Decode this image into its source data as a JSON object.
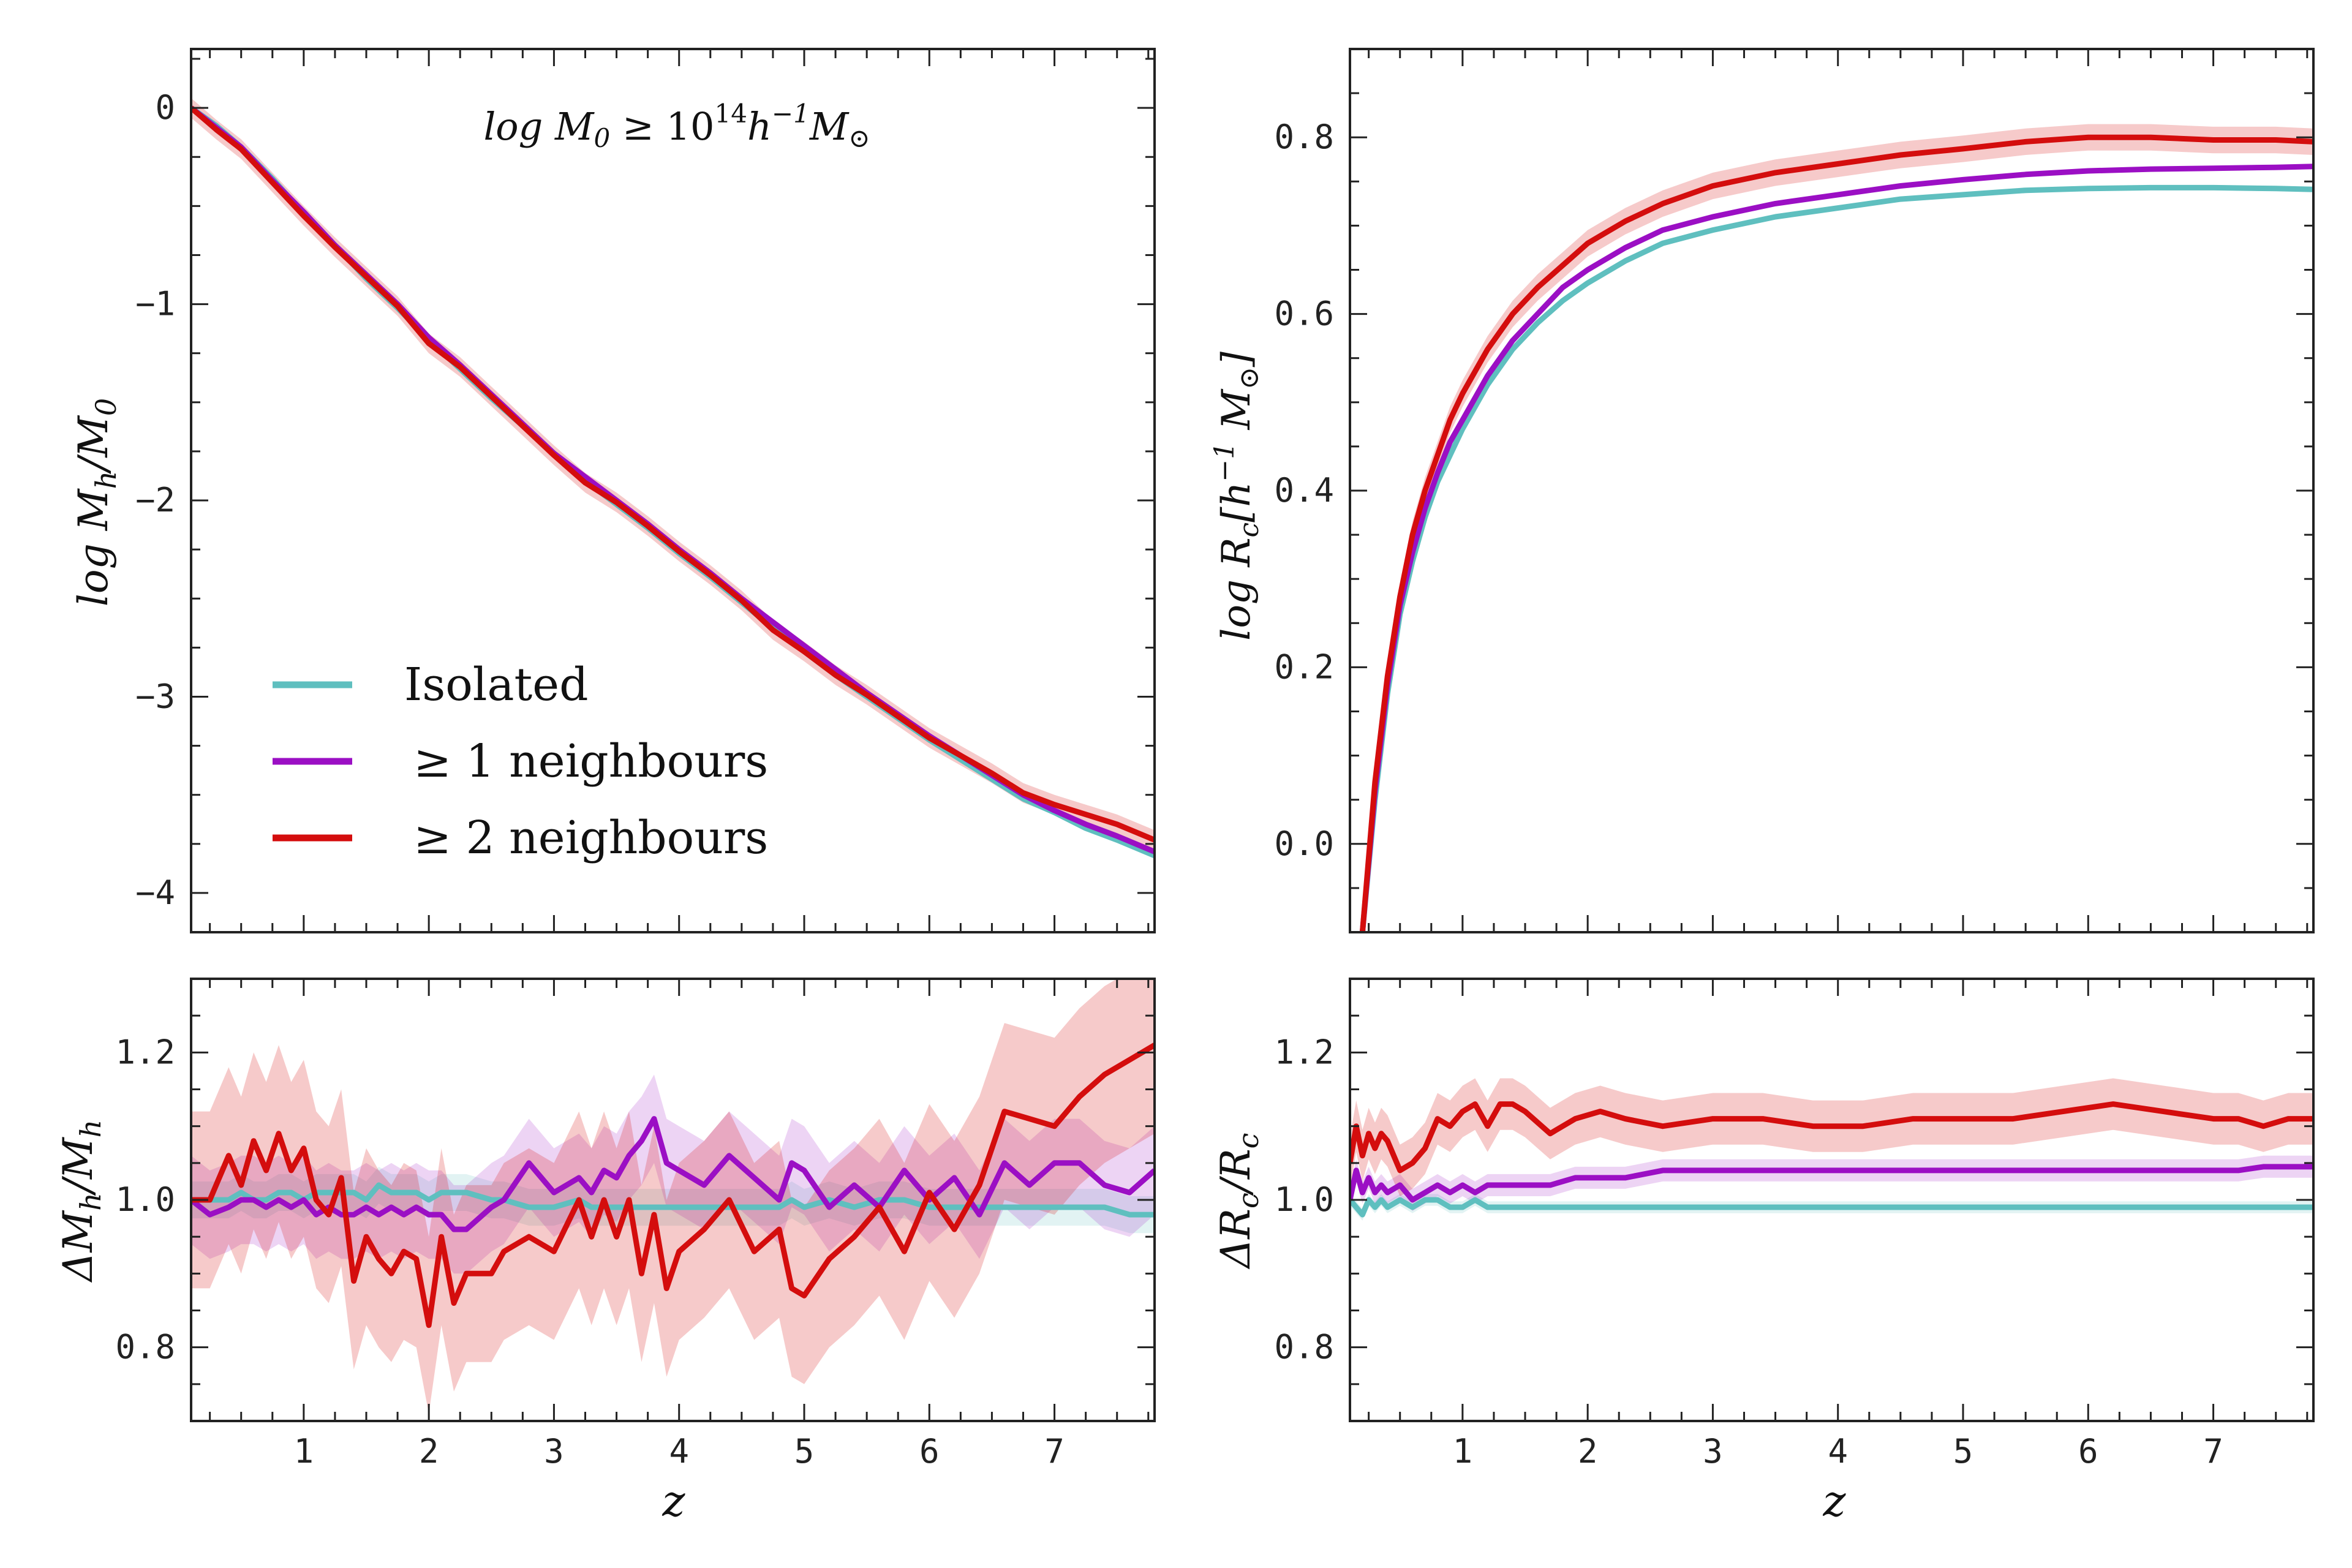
{
  "colors": {
    "isolated": "#5fbfbf",
    "n1": "#9b0fc4",
    "n2": "#d40d0d"
  },
  "annotation": {
    "sup": "14",
    "pre": "log M",
    "mid": " ≥ 10",
    "post": "h",
    "sup2": "−1",
    "end": "M"
  },
  "legend": {
    "placement": "lower-left",
    "entries": [
      "Isolated",
      "≥ 1 neighbours",
      "≥ 2 neighbours"
    ]
  },
  "chart_data": [
    {
      "type": "line",
      "panel": "top-left",
      "ylabel": "log Mh/M0",
      "xlim": [
        0.1,
        7.8
      ],
      "ylim": [
        -4.2,
        0.3
      ],
      "xticks": [
        1,
        2,
        3,
        4,
        5,
        6,
        7
      ],
      "yticks": [
        0,
        -1,
        -2,
        -3,
        -4
      ],
      "ytick_labels": [
        "0",
        "−1",
        "−2",
        "−3",
        "−4"
      ],
      "x": [
        0.1,
        0.3,
        0.5,
        0.75,
        1.0,
        1.25,
        1.5,
        1.75,
        2.0,
        2.25,
        2.5,
        2.75,
        3.0,
        3.25,
        3.5,
        3.75,
        4.0,
        4.25,
        4.5,
        4.75,
        5.0,
        5.25,
        5.5,
        5.75,
        6.0,
        6.25,
        6.5,
        6.75,
        7.0,
        7.25,
        7.5,
        7.8
      ],
      "series": [
        {
          "name": "Isolated",
          "color": "#5fbfbf",
          "values": [
            0.0,
            -0.09,
            -0.2,
            -0.36,
            -0.54,
            -0.7,
            -0.87,
            -1.02,
            -1.18,
            -1.33,
            -1.48,
            -1.62,
            -1.76,
            -1.9,
            -2.02,
            -2.14,
            -2.27,
            -2.39,
            -2.52,
            -2.65,
            -2.77,
            -2.89,
            -3.0,
            -3.11,
            -3.22,
            -3.32,
            -3.42,
            -3.52,
            -3.59,
            -3.67,
            -3.73,
            -3.81
          ]
        },
        {
          "name": "≥ 1 neighbours",
          "color": "#9b0fc4",
          "values": [
            0.0,
            -0.1,
            -0.2,
            -0.37,
            -0.53,
            -0.7,
            -0.85,
            -1.0,
            -1.17,
            -1.31,
            -1.46,
            -1.61,
            -1.76,
            -1.88,
            -2.0,
            -2.12,
            -2.25,
            -2.37,
            -2.5,
            -2.62,
            -2.74,
            -2.86,
            -2.98,
            -3.09,
            -3.2,
            -3.3,
            -3.4,
            -3.5,
            -3.58,
            -3.65,
            -3.71,
            -3.79
          ]
        },
        {
          "name": "≥ 2 neighbours",
          "color": "#d40d0d",
          "values": [
            0.0,
            -0.11,
            -0.21,
            -0.38,
            -0.55,
            -0.71,
            -0.86,
            -1.01,
            -1.2,
            -1.32,
            -1.47,
            -1.62,
            -1.77,
            -1.91,
            -2.01,
            -2.13,
            -2.26,
            -2.38,
            -2.51,
            -2.66,
            -2.77,
            -2.89,
            -2.99,
            -3.1,
            -3.21,
            -3.3,
            -3.39,
            -3.49,
            -3.55,
            -3.6,
            -3.65,
            -3.73
          ],
          "band": 0.05
        }
      ]
    },
    {
      "type": "line",
      "panel": "top-right",
      "ylabel": "log Rc[h−1 M⊙]",
      "xlim": [
        0.1,
        7.8
      ],
      "ylim": [
        -0.1,
        0.9
      ],
      "xticks": [
        1,
        2,
        3,
        4,
        5,
        6,
        7
      ],
      "yticks": [
        0.0,
        0.2,
        0.4,
        0.6,
        0.8
      ],
      "ytick_labels": [
        "0.0",
        "0.2",
        "0.4",
        "0.6",
        "0.8"
      ],
      "x": [
        0.2,
        0.3,
        0.4,
        0.5,
        0.6,
        0.7,
        0.8,
        0.9,
        1.0,
        1.2,
        1.4,
        1.6,
        1.8,
        2.0,
        2.3,
        2.6,
        3.0,
        3.5,
        4.0,
        4.5,
        5.0,
        5.5,
        6.0,
        6.5,
        7.0,
        7.5,
        7.8
      ],
      "series": [
        {
          "name": "Isolated",
          "color": "#5fbfbf",
          "values": [
            -0.1,
            0.05,
            0.17,
            0.26,
            0.32,
            0.37,
            0.41,
            0.44,
            0.47,
            0.52,
            0.56,
            0.59,
            0.615,
            0.635,
            0.66,
            0.68,
            0.695,
            0.71,
            0.72,
            0.73,
            0.735,
            0.74,
            0.742,
            0.743,
            0.743,
            0.742,
            0.741
          ]
        },
        {
          "name": "≥ 1 neighbours",
          "color": "#9b0fc4",
          "values": [
            -0.1,
            0.06,
            0.18,
            0.27,
            0.33,
            0.38,
            0.42,
            0.455,
            0.48,
            0.53,
            0.57,
            0.6,
            0.63,
            0.65,
            0.675,
            0.695,
            0.71,
            0.725,
            0.735,
            0.745,
            0.752,
            0.758,
            0.762,
            0.764,
            0.765,
            0.766,
            0.767
          ]
        },
        {
          "name": "≥ 2 neighbours",
          "color": "#d40d0d",
          "values": [
            -0.1,
            0.07,
            0.19,
            0.28,
            0.35,
            0.4,
            0.44,
            0.48,
            0.51,
            0.56,
            0.6,
            0.63,
            0.655,
            0.68,
            0.705,
            0.725,
            0.745,
            0.76,
            0.77,
            0.78,
            0.787,
            0.795,
            0.8,
            0.8,
            0.797,
            0.797,
            0.795
          ],
          "band": 0.015
        }
      ]
    },
    {
      "type": "line",
      "panel": "bottom-left",
      "ylabel": "ΔMh/Mh",
      "xlabel": "z",
      "xlim": [
        0.1,
        7.8
      ],
      "ylim": [
        0.7,
        1.3
      ],
      "xticks": [
        1,
        2,
        3,
        4,
        5,
        6,
        7
      ],
      "yticks": [
        0.8,
        1.0,
        1.2
      ],
      "ytick_labels": [
        "0.8",
        "1.0",
        "1.2"
      ],
      "x": [
        0.1,
        0.25,
        0.4,
        0.5,
        0.6,
        0.7,
        0.8,
        0.9,
        1.0,
        1.1,
        1.2,
        1.3,
        1.4,
        1.5,
        1.6,
        1.7,
        1.8,
        1.9,
        2.0,
        2.1,
        2.2,
        2.3,
        2.5,
        2.6,
        2.8,
        3.0,
        3.2,
        3.3,
        3.4,
        3.5,
        3.6,
        3.7,
        3.8,
        3.9,
        4.0,
        4.2,
        4.4,
        4.6,
        4.8,
        4.9,
        5.0,
        5.2,
        5.4,
        5.6,
        5.8,
        6.0,
        6.2,
        6.4,
        6.6,
        6.8,
        7.0,
        7.2,
        7.4,
        7.6,
        7.8
      ],
      "series": [
        {
          "name": "Isolated",
          "color": "#5fbfbf",
          "values": [
            1.0,
            1.0,
            1.0,
            1.01,
            1.0,
            1.0,
            1.01,
            1.01,
            1.0,
            1.01,
            1.01,
            1.01,
            1.01,
            1.0,
            1.02,
            1.01,
            1.01,
            1.01,
            1.0,
            1.01,
            1.01,
            1.01,
            1.0,
            1.0,
            0.99,
            0.99,
            1.0,
            0.99,
            0.99,
            0.99,
            0.99,
            0.99,
            0.99,
            0.99,
            0.99,
            0.99,
            0.99,
            0.99,
            0.99,
            1.0,
            0.99,
            1.0,
            0.99,
            1.0,
            1.0,
            0.99,
            0.99,
            0.99,
            0.99,
            0.99,
            0.99,
            0.99,
            0.99,
            0.98,
            0.98
          ],
          "band": 0.025
        },
        {
          "name": "≥ 1 neighbours",
          "color": "#9b0fc4",
          "values": [
            1.0,
            0.98,
            0.99,
            1.0,
            1.0,
            0.99,
            1.0,
            0.99,
            1.0,
            0.98,
            0.99,
            0.98,
            0.98,
            0.99,
            0.98,
            0.99,
            0.98,
            0.99,
            0.98,
            0.98,
            0.96,
            0.96,
            0.99,
            1.0,
            1.05,
            1.01,
            1.03,
            1.01,
            1.04,
            1.03,
            1.06,
            1.08,
            1.11,
            1.05,
            1.04,
            1.02,
            1.06,
            1.03,
            1.0,
            1.05,
            1.04,
            0.99,
            1.02,
            0.99,
            1.04,
            1.0,
            1.03,
            0.98,
            1.05,
            1.02,
            1.05,
            1.05,
            1.02,
            1.01,
            1.04
          ],
          "band": 0.06
        },
        {
          "name": "≥ 2 neighbours",
          "color": "#d40d0d",
          "values": [
            1.0,
            1.0,
            1.06,
            1.02,
            1.08,
            1.04,
            1.09,
            1.04,
            1.07,
            1.0,
            0.98,
            1.03,
            0.89,
            0.95,
            0.92,
            0.9,
            0.93,
            0.92,
            0.83,
            0.95,
            0.86,
            0.9,
            0.9,
            0.93,
            0.95,
            0.93,
            1.0,
            0.95,
            1.0,
            0.95,
            1.0,
            0.9,
            0.98,
            0.88,
            0.93,
            0.96,
            1.0,
            0.93,
            0.96,
            0.88,
            0.87,
            0.92,
            0.95,
            0.99,
            0.93,
            1.01,
            0.96,
            1.02,
            1.12,
            1.11,
            1.1,
            1.14,
            1.17,
            1.19,
            1.21
          ],
          "band": 0.12
        }
      ]
    },
    {
      "type": "line",
      "panel": "bottom-right",
      "ylabel": "ΔRc/Rc",
      "xlabel": "z",
      "xlim": [
        0.1,
        7.8
      ],
      "ylim": [
        0.7,
        1.3
      ],
      "xticks": [
        1,
        2,
        3,
        4,
        5,
        6,
        7
      ],
      "yticks": [
        0.8,
        1.0,
        1.2
      ],
      "ytick_labels": [
        "0.8",
        "1.0",
        "1.2"
      ],
      "x": [
        0.1,
        0.15,
        0.2,
        0.25,
        0.3,
        0.35,
        0.4,
        0.5,
        0.6,
        0.7,
        0.8,
        0.9,
        1.0,
        1.1,
        1.2,
        1.3,
        1.4,
        1.5,
        1.7,
        1.9,
        2.1,
        2.3,
        2.6,
        3.0,
        3.4,
        3.8,
        4.2,
        4.6,
        5.0,
        5.4,
        5.8,
        6.2,
        6.6,
        7.0,
        7.2,
        7.4,
        7.6,
        7.8
      ],
      "series": [
        {
          "name": "Isolated",
          "color": "#5fbfbf",
          "values": [
            1.0,
            0.99,
            0.98,
            1.0,
            0.99,
            1.0,
            0.99,
            1.0,
            0.99,
            1.0,
            1.0,
            0.99,
            0.99,
            1.0,
            0.99,
            0.99,
            0.99,
            0.99,
            0.99,
            0.99,
            0.99,
            0.99,
            0.99,
            0.99,
            0.99,
            0.99,
            0.99,
            0.99,
            0.99,
            0.99,
            0.99,
            0.99,
            0.99,
            0.99,
            0.99,
            0.99,
            0.99,
            0.99
          ],
          "band": 0.008
        },
        {
          "name": "≥ 1 neighbours",
          "color": "#9b0fc4",
          "values": [
            1.0,
            1.04,
            1.01,
            1.03,
            1.01,
            1.02,
            1.01,
            1.02,
            1.0,
            1.01,
            1.02,
            1.01,
            1.02,
            1.01,
            1.02,
            1.02,
            1.02,
            1.02,
            1.02,
            1.03,
            1.03,
            1.03,
            1.04,
            1.04,
            1.04,
            1.04,
            1.04,
            1.04,
            1.04,
            1.04,
            1.04,
            1.04,
            1.04,
            1.04,
            1.04,
            1.045,
            1.045,
            1.045
          ],
          "band": 0.015
        },
        {
          "name": "≥ 2 neighbours",
          "color": "#d40d0d",
          "values": [
            1.05,
            1.1,
            1.06,
            1.09,
            1.07,
            1.09,
            1.08,
            1.04,
            1.05,
            1.07,
            1.11,
            1.1,
            1.12,
            1.13,
            1.1,
            1.13,
            1.13,
            1.12,
            1.09,
            1.11,
            1.12,
            1.11,
            1.1,
            1.11,
            1.11,
            1.1,
            1.1,
            1.11,
            1.11,
            1.11,
            1.12,
            1.13,
            1.12,
            1.11,
            1.11,
            1.1,
            1.11,
            1.11
          ],
          "band": 0.035
        }
      ]
    }
  ]
}
